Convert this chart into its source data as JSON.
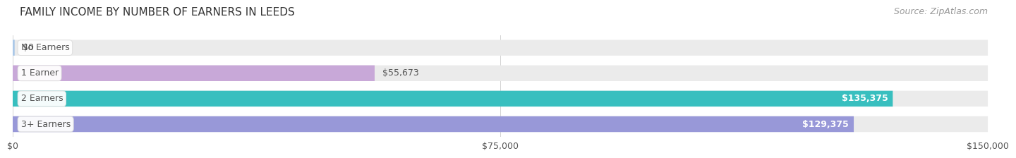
{
  "title": "FAMILY INCOME BY NUMBER OF EARNERS IN LEEDS",
  "source": "Source: ZipAtlas.com",
  "categories": [
    "No Earners",
    "1 Earner",
    "2 Earners",
    "3+ Earners"
  ],
  "values": [
    0,
    55673,
    135375,
    129375
  ],
  "value_labels": [
    "$0",
    "$55,673",
    "$135,375",
    "$129,375"
  ],
  "bar_colors": [
    "#aac8e8",
    "#c8a8d8",
    "#38bfbf",
    "#9898d8"
  ],
  "bar_bg_color": "#ebebeb",
  "label_text_color": "#555555",
  "title_color": "#333333",
  "source_color": "#999999",
  "xlim_max": 150000,
  "xtick_values": [
    0,
    75000,
    150000
  ],
  "xtick_labels": [
    "$0",
    "$75,000",
    "$150,000"
  ],
  "fig_bg_color": "#ffffff",
  "bar_height": 0.62,
  "title_fontsize": 11,
  "source_fontsize": 9,
  "label_fontsize": 9,
  "value_fontsize": 9,
  "value_inside_threshold": 0.72,
  "label_pill_color": "#ffffff",
  "label_pill_edge": "#dddddd"
}
